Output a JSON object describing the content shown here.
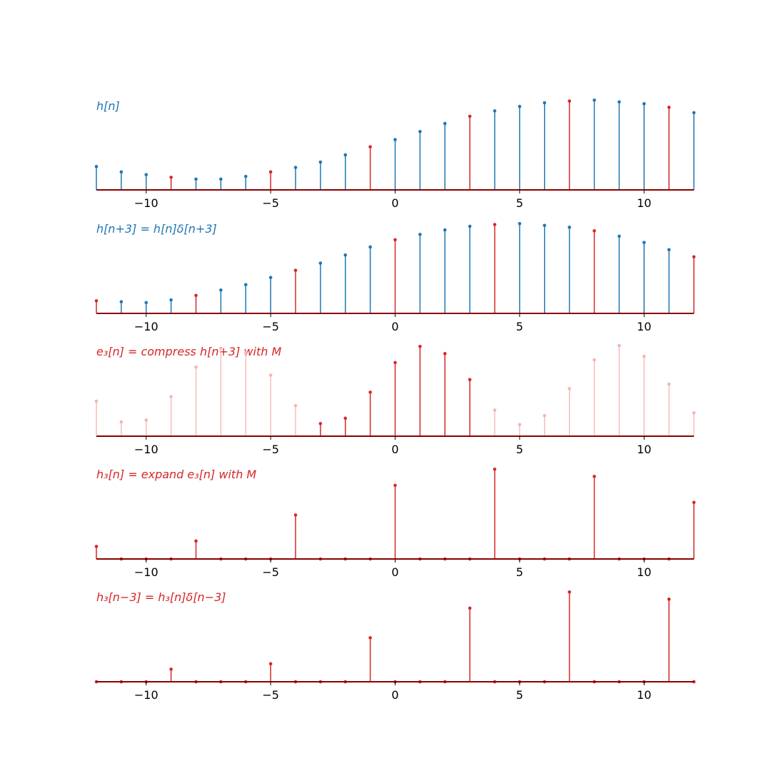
{
  "figure": {
    "xlim": [
      -12,
      12
    ],
    "xticks": [
      -10,
      -5,
      0,
      5,
      10
    ],
    "xtick_labels": [
      "−10",
      "−5",
      "0",
      "5",
      "10"
    ],
    "colors": {
      "blue": "#1f77b4",
      "red": "#d62728",
      "faded_red": "#f4b4b4",
      "baseline": "#8b0000"
    }
  },
  "chart_data": [
    {
      "type": "stem",
      "title": "h[n]",
      "title_color": "#1f77b4",
      "x": [
        -12,
        -11,
        -10,
        -9,
        -8,
        -7,
        -6,
        -5,
        -4,
        -3,
        -2,
        -1,
        0,
        1,
        2,
        3,
        4,
        5,
        6,
        7,
        8,
        9,
        10,
        11,
        12
      ],
      "values": [
        0.26,
        0.2,
        0.17,
        0.14,
        0.12,
        0.12,
        0.15,
        0.2,
        0.25,
        0.31,
        0.39,
        0.48,
        0.56,
        0.65,
        0.74,
        0.82,
        0.88,
        0.93,
        0.97,
        0.99,
        1.0,
        0.98,
        0.96,
        0.92,
        0.86
      ],
      "highlight_x": [
        -9,
        -5,
        -1,
        3,
        7,
        11
      ],
      "ylim": [
        0,
        1.05
      ]
    },
    {
      "type": "stem",
      "title": "h[n+3] = h[n]δ[n+3]",
      "title_color": "#1f77b4",
      "x": [
        -12,
        -11,
        -10,
        -9,
        -8,
        -7,
        -6,
        -5,
        -4,
        -3,
        -2,
        -1,
        0,
        1,
        2,
        3,
        4,
        5,
        6,
        7,
        8,
        9,
        10,
        11,
        12
      ],
      "values": [
        0.14,
        0.13,
        0.12,
        0.15,
        0.2,
        0.26,
        0.32,
        0.4,
        0.48,
        0.56,
        0.65,
        0.74,
        0.82,
        0.88,
        0.93,
        0.97,
        0.99,
        1.0,
        0.98,
        0.96,
        0.92,
        0.86,
        0.79,
        0.71,
        0.63
      ],
      "highlight_x": [
        -12,
        -8,
        -4,
        0,
        4,
        8,
        12
      ],
      "ylim": [
        0,
        1.05
      ]
    },
    {
      "type": "stem",
      "title": "e₃[n] = compress h[n+3] with M",
      "title_color": "#d62728",
      "x": [
        -12,
        -11,
        -10,
        -9,
        -8,
        -7,
        -6,
        -5,
        -4,
        -3,
        -2,
        -1,
        0,
        1,
        2,
        3,
        4,
        5,
        6,
        7,
        8,
        9,
        10,
        11,
        12
      ],
      "values": [
        0.39,
        0.16,
        0.18,
        0.44,
        0.77,
        0.98,
        0.93,
        0.68,
        0.34,
        0.14,
        0.2,
        0.49,
        0.82,
        1.0,
        0.92,
        0.63,
        0.29,
        0.13,
        0.23,
        0.53,
        0.85,
        1.01,
        0.89,
        0.58,
        0.26
      ],
      "highlight_x": [
        -3,
        -2,
        -1,
        0,
        1,
        2,
        3
      ],
      "ylim": [
        0,
        1.05
      ]
    },
    {
      "type": "stem",
      "title": "h₃[n] = expand e₃[n] with M",
      "title_color": "#d62728",
      "x": [
        -12,
        -11,
        -10,
        -9,
        -8,
        -7,
        -6,
        -5,
        -4,
        -3,
        -2,
        -1,
        0,
        1,
        2,
        3,
        4,
        5,
        6,
        7,
        8,
        9,
        10,
        11,
        12
      ],
      "values": [
        0.14,
        0,
        0,
        0,
        0.2,
        0,
        0,
        0,
        0.49,
        0,
        0,
        0,
        0.82,
        0,
        0,
        0,
        1.0,
        0,
        0,
        0,
        0.92,
        0,
        0,
        0,
        0.63
      ],
      "highlight_x": [
        -12,
        -11,
        -10,
        -9,
        -8,
        -7,
        -6,
        -5,
        -4,
        -3,
        -2,
        -1,
        0,
        1,
        2,
        3,
        4,
        5,
        6,
        7,
        8,
        9,
        10,
        11,
        12
      ],
      "ylim": [
        0,
        1.05
      ]
    },
    {
      "type": "stem",
      "title": "h₃[n−3] = h₃[n]δ[n−3]",
      "title_color": "#d62728",
      "x": [
        -12,
        -11,
        -10,
        -9,
        -8,
        -7,
        -6,
        -5,
        -4,
        -3,
        -2,
        -1,
        0,
        1,
        2,
        3,
        4,
        5,
        6,
        7,
        8,
        9,
        10,
        11,
        12
      ],
      "values": [
        0,
        0,
        0,
        0.14,
        0,
        0,
        0,
        0.2,
        0,
        0,
        0,
        0.49,
        0,
        0,
        0,
        0.82,
        0,
        0,
        0,
        1.0,
        0,
        0,
        0,
        0.92,
        0
      ],
      "highlight_x": [
        -12,
        -11,
        -10,
        -9,
        -8,
        -7,
        -6,
        -5,
        -4,
        -3,
        -2,
        -1,
        0,
        1,
        2,
        3,
        4,
        5,
        6,
        7,
        8,
        9,
        10,
        11,
        12
      ],
      "ylim": [
        0,
        1.05
      ]
    }
  ]
}
